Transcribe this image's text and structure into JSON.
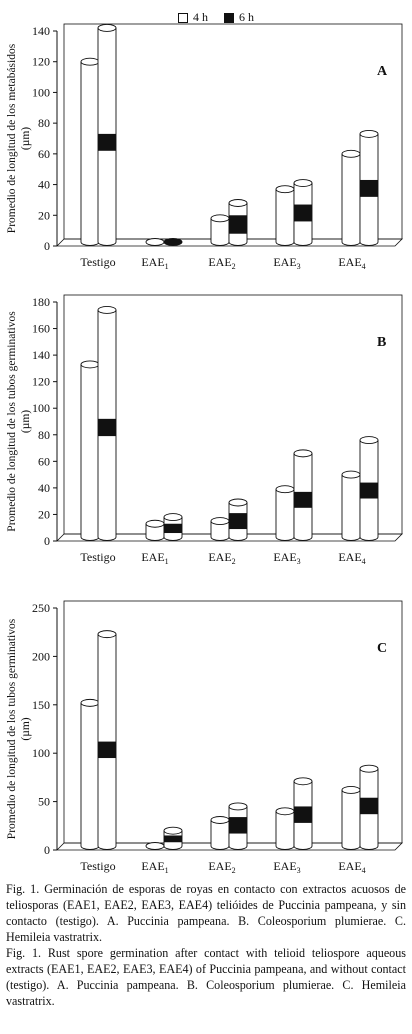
{
  "legend": [
    {
      "label": "4 h",
      "color": "#ffffff"
    },
    {
      "label": "6 h",
      "color": "#111111"
    }
  ],
  "chart_data": [
    {
      "type": "bar",
      "panel_label": "A",
      "ylabel": "Promedio de longitud de los metabásidos (µm)",
      "ylim": [
        0,
        140
      ],
      "yticks": [
        0,
        20,
        40,
        60,
        80,
        100,
        120,
        140
      ],
      "categories": [
        "Testigo",
        "EAE1",
        "EAE2",
        "EAE3",
        "EAE4"
      ],
      "series": [
        {
          "name": "4 h",
          "values": [
            120,
            0,
            18,
            37,
            60
          ]
        },
        {
          "name": "6 h",
          "values": [
            142,
            0,
            28,
            41,
            73
          ]
        }
      ],
      "band_6h": [
        [
          62,
          73
        ],
        [
          0,
          0
        ],
        [
          8,
          20
        ],
        [
          16,
          27
        ],
        [
          32,
          43
        ]
      ]
    },
    {
      "type": "bar",
      "panel_label": "B",
      "ylabel": "Promedio de longitud de los tubos germinativos (µm)",
      "ylim": [
        0,
        180
      ],
      "yticks": [
        0,
        20,
        40,
        60,
        80,
        100,
        120,
        140,
        160,
        180
      ],
      "categories": [
        "Testigo",
        "EAE1",
        "EAE2",
        "EAE3",
        "EAE4"
      ],
      "series": [
        {
          "name": "4 h",
          "values": [
            133,
            13,
            15,
            39,
            50
          ]
        },
        {
          "name": "6 h",
          "values": [
            174,
            18,
            29,
            66,
            76
          ]
        }
      ],
      "band_6h": [
        [
          79,
          92
        ],
        [
          6,
          13
        ],
        [
          9,
          21
        ],
        [
          25,
          37
        ],
        [
          32,
          44
        ]
      ]
    },
    {
      "type": "bar",
      "panel_label": "C",
      "ylabel": "Promedio de longitud de los tubos germinativos (µm)",
      "ylim": [
        0,
        250
      ],
      "yticks": [
        0,
        50,
        100,
        150,
        200,
        250
      ],
      "categories": [
        "Testigo",
        "EAE1",
        "EAE2",
        "EAE3",
        "EAE4"
      ],
      "series": [
        {
          "name": "4 h",
          "values": [
            152,
            0,
            31,
            40,
            62
          ]
        },
        {
          "name": "6 h",
          "values": [
            223,
            20,
            45,
            71,
            84
          ]
        }
      ],
      "band_6h": [
        [
          95,
          112
        ],
        [
          8,
          15
        ],
        [
          17,
          34
        ],
        [
          28,
          45
        ],
        [
          37,
          54
        ]
      ]
    }
  ],
  "caption": [
    "Fig. 1. Germinación de esporas de royas en contacto con extractos acuosos de teliosporas (EAE1, EAE2, EAE3, EAE4) telióides de Puccinia pampeana, y sin contacto (testigo). A. Puccinia pampeana. B. Coleosporium plumierae. C. Hemileia vastratrix.",
    "Fig. 1. Rust spore germination after contact with telioid teliospore aqueous extracts (EAE1, EAE2, EAE3, EAE4) of Puccinia pampeana, and without contact (testigo). A. Puccinia pampeana. B. Coleosporium plumierae. C. Hemileia vastratrix."
  ]
}
